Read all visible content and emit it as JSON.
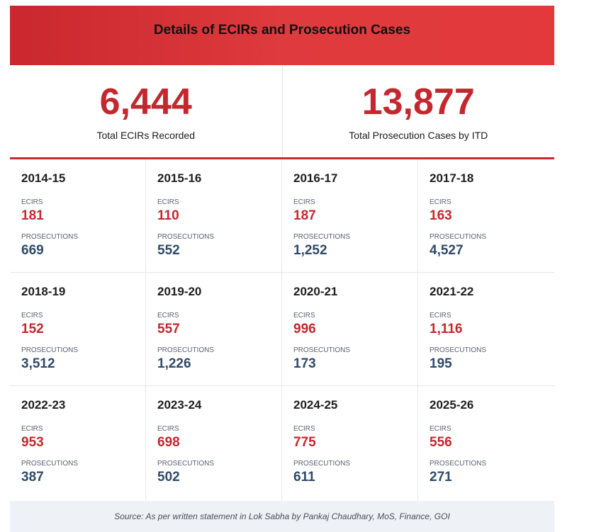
{
  "header": {
    "title": "Details of ECIRs and Prosecution Cases"
  },
  "totals": [
    {
      "value": "6,444",
      "label": "Total ECIRs Recorded"
    },
    {
      "value": "13,877",
      "label": "Total Prosecution Cases by ITD"
    }
  ],
  "labels": {
    "ecirs": "ECIRS",
    "prosecutions": "PROSECUTIONS"
  },
  "years": [
    {
      "year": "2014-15",
      "ecirs": "181",
      "prosecutions": "669"
    },
    {
      "year": "2015-16",
      "ecirs": "110",
      "prosecutions": "552"
    },
    {
      "year": "2016-17",
      "ecirs": "187",
      "prosecutions": "1,252"
    },
    {
      "year": "2017-18",
      "ecirs": "163",
      "prosecutions": "4,527"
    },
    {
      "year": "2018-19",
      "ecirs": "152",
      "prosecutions": "3,512"
    },
    {
      "year": "2019-20",
      "ecirs": "557",
      "prosecutions": "1,226"
    },
    {
      "year": "2020-21",
      "ecirs": "996",
      "prosecutions": "173"
    },
    {
      "year": "2021-22",
      "ecirs": "1,116",
      "prosecutions": "195"
    },
    {
      "year": "2022-23",
      "ecirs": "953",
      "prosecutions": "387"
    },
    {
      "year": "2023-24",
      "ecirs": "698",
      "prosecutions": "502"
    },
    {
      "year": "2024-25",
      "ecirs": "775",
      "prosecutions": "611"
    },
    {
      "year": "2025-26",
      "ecirs": "556",
      "prosecutions": "271"
    }
  ],
  "source": "Source: As per written statement in Lok Sabha by Pankaj Chaudhary, MoS, Finance, GOI",
  "colors": {
    "accent": "#c2282d",
    "header_bg": "#e3393c",
    "prosecution_value": "#2f4a68",
    "source_bg": "#eef1f5"
  }
}
